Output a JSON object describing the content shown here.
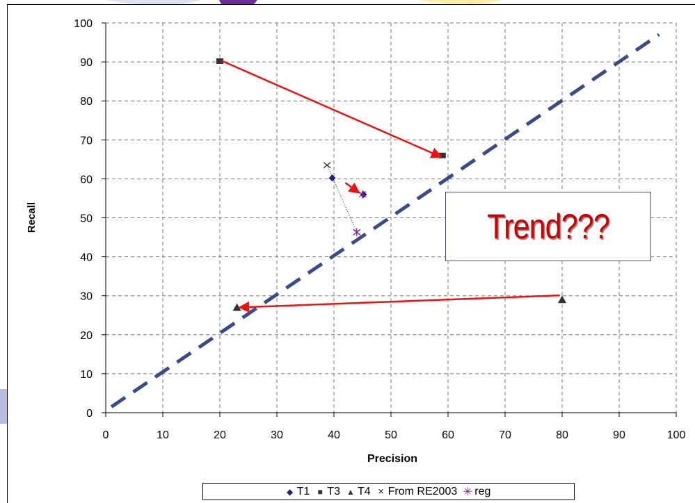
{
  "colors": {
    "series_T1": "#1f1f8c",
    "series_T3": "#333333",
    "series_T4": "#333333",
    "series_RE2003": "#222222",
    "series_reg": "#7a1f8c",
    "trend_line": "#3b4a8a",
    "arrows": "#ee1111",
    "annotation_text": "#cc0000"
  },
  "chart_data": {
    "type": "scatter",
    "xlabel": "Precision",
    "ylabel": "Recall",
    "xlim": [
      0,
      100
    ],
    "ylim": [
      0,
      100
    ],
    "x_ticks": [
      "0",
      "10",
      "20",
      "30",
      "40",
      "50",
      "60",
      "70",
      "80",
      "90",
      "100"
    ],
    "y_ticks": [
      "0",
      "10",
      "20",
      "30",
      "40",
      "50",
      "60",
      "70",
      "80",
      "90",
      "100"
    ],
    "grid": true,
    "legend_position": "bottom",
    "series": [
      {
        "name": "T1",
        "marker": "diamond",
        "x": [
          39.7,
          45.2
        ],
        "y": [
          60.2,
          56.0
        ]
      },
      {
        "name": "T3",
        "marker": "square",
        "x": [
          20.0,
          59.0
        ],
        "y": [
          90.2,
          66.0
        ]
      },
      {
        "name": "T4",
        "marker": "triangle",
        "x": [
          80.0,
          23.0
        ],
        "y": [
          29.0,
          27.0
        ]
      },
      {
        "name": "From RE2003",
        "marker": "x",
        "x": [
          38.8,
          44.0
        ],
        "y": [
          63.5,
          46.3
        ]
      },
      {
        "name": "reg",
        "marker": "asterisk",
        "x": [
          45.0,
          44.0
        ],
        "y": [
          56.0,
          46.3
        ]
      }
    ],
    "trend_line": {
      "x": [
        1,
        97
      ],
      "y": [
        1.5,
        97
      ]
    },
    "dotted_links": [
      {
        "x": [
          38.8,
          44.0
        ],
        "y": [
          63.5,
          46.3
        ]
      }
    ],
    "arrows": [
      {
        "from": [
          20.3,
          90.3
        ],
        "to": [
          59.0,
          65.5
        ]
      },
      {
        "from": [
          42.0,
          59.0
        ],
        "to": [
          44.6,
          56.2
        ]
      },
      {
        "from": [
          79.6,
          30.1
        ],
        "to": [
          23.2,
          27.0
        ]
      }
    ],
    "annotation": "Trend???"
  }
}
